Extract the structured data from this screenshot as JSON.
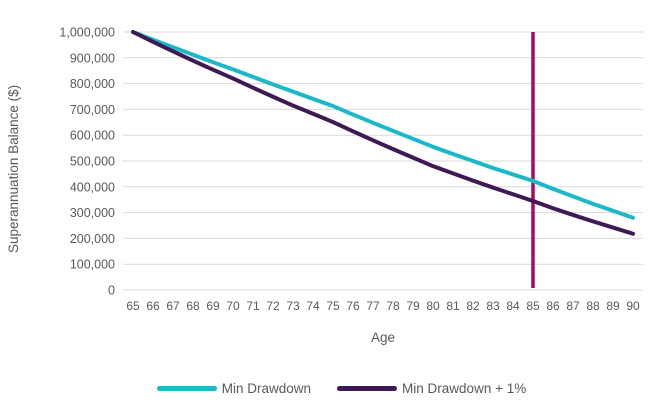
{
  "chart": {
    "y_axis_title": "Superannuation Balance ($)",
    "x_axis_title": "Age"
  },
  "chart_data": {
    "type": "line",
    "title": "",
    "xlabel": "Age",
    "ylabel": "Superannuation Balance ($)",
    "x": [
      65,
      66,
      67,
      68,
      69,
      70,
      71,
      72,
      73,
      74,
      75,
      76,
      77,
      78,
      79,
      80,
      81,
      82,
      83,
      84,
      85,
      86,
      87,
      88,
      89,
      90
    ],
    "series": [
      {
        "name": "Min Drawdown",
        "color": "#1CB8C8",
        "values": [
          1000000,
          970000,
          941000,
          912000,
          883000,
          855000,
          826000,
          797000,
          769000,
          741000,
          713000,
          680000,
          648000,
          617000,
          586000,
          555000,
          527000,
          500000,
          473000,
          448000,
          423000,
          392000,
          363000,
          334000,
          307000,
          280000
        ]
      },
      {
        "name": "Min Drawdown + 1%",
        "color": "#3D1A53",
        "values": [
          1000000,
          962000,
          925000,
          889000,
          854000,
          820000,
          784000,
          749000,
          715000,
          683000,
          651000,
          615000,
          580000,
          546000,
          513000,
          480000,
          452000,
          424000,
          397000,
          371000,
          345000,
          317000,
          291000,
          266000,
          242000,
          218000
        ]
      }
    ],
    "annotations": [
      {
        "type": "vertical-line",
        "x": 85,
        "from": 0,
        "to": 1000000,
        "color": "#A60B5E"
      }
    ],
    "ylim": [
      0,
      1000000
    ],
    "y_tick_labels": [
      "0",
      "100,000",
      "200,000",
      "300,000",
      "400,000",
      "500,000",
      "600,000",
      "700,000",
      "800,000",
      "900,000",
      "1,000,000"
    ],
    "grid": "horizontal-only",
    "gridline_color": "#D9D9D9",
    "text_color": "#595959",
    "legend_position": "bottom"
  }
}
